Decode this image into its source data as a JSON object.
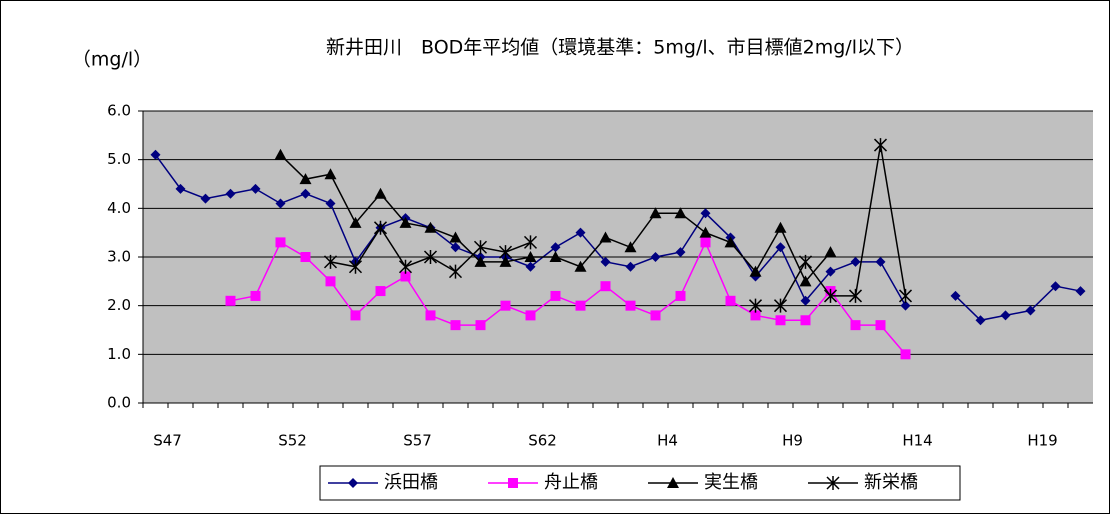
{
  "chart_data": {
    "type": "line",
    "title": "新井田川　BOD年平均値（環境基準：5mg/l、市目標値2mg/l以下）",
    "y_label": "（mg/l）",
    "categories": [
      "S47",
      null,
      null,
      null,
      null,
      "S52",
      null,
      null,
      null,
      null,
      "S57",
      null,
      null,
      null,
      null,
      "S62",
      null,
      null,
      null,
      null,
      "H4",
      null,
      null,
      null,
      null,
      "H9",
      null,
      null,
      null,
      null,
      "H14",
      null,
      null,
      null,
      null,
      "H19",
      null,
      null
    ],
    "series": [
      {
        "name": "浜田橋",
        "color": "#000080",
        "marker": "diamond",
        "values": [
          5.1,
          4.4,
          4.2,
          4.3,
          4.4,
          4.1,
          4.3,
          4.1,
          2.9,
          3.6,
          3.8,
          3.6,
          3.2,
          3.0,
          3.0,
          2.8,
          3.2,
          3.5,
          2.9,
          2.8,
          3.0,
          3.1,
          3.9,
          3.4,
          2.6,
          3.2,
          2.1,
          2.7,
          2.9,
          2.9,
          2.0,
          null,
          2.2,
          1.7,
          1.8,
          1.9,
          2.4,
          2.3
        ]
      },
      {
        "name": "舟止橋",
        "color": "#ff00ff",
        "marker": "square",
        "values": [
          null,
          null,
          null,
          2.1,
          2.2,
          3.3,
          3.0,
          2.5,
          1.8,
          2.3,
          2.6,
          1.8,
          1.6,
          1.6,
          2.0,
          1.8,
          2.2,
          2.0,
          2.4,
          2.0,
          1.8,
          2.2,
          3.3,
          2.1,
          1.8,
          1.7,
          1.7,
          2.3,
          1.6,
          1.6,
          1.0,
          null,
          null,
          null,
          null,
          null,
          null,
          null
        ]
      },
      {
        "name": "実生橋",
        "color": "#000000",
        "marker": "triangle",
        "values": [
          null,
          null,
          null,
          null,
          null,
          5.1,
          4.6,
          4.7,
          3.7,
          4.3,
          3.7,
          3.6,
          3.4,
          2.9,
          2.9,
          3.0,
          3.0,
          2.8,
          3.4,
          3.2,
          3.9,
          3.9,
          3.5,
          3.3,
          2.7,
          3.6,
          2.5,
          3.1,
          null,
          null,
          null,
          null,
          null,
          null,
          null,
          null,
          null,
          null
        ]
      },
      {
        "name": "新栄橋",
        "color": "#000000",
        "marker": "asterisk",
        "values": [
          null,
          null,
          null,
          null,
          null,
          null,
          null,
          2.9,
          2.8,
          3.6,
          2.8,
          3.0,
          2.7,
          3.2,
          3.1,
          3.3,
          null,
          null,
          null,
          null,
          null,
          null,
          null,
          null,
          2.0,
          2.0,
          2.9,
          2.2,
          2.2,
          5.3,
          2.2,
          null,
          null,
          null,
          null,
          null,
          null,
          null
        ]
      }
    ],
    "ylim": [
      0,
      6
    ],
    "yticks": [
      {
        "value": 0,
        "label": "0.0"
      },
      {
        "value": 1,
        "label": "1.0"
      },
      {
        "value": 2,
        "label": "2.0"
      },
      {
        "value": 3,
        "label": "3.0"
      },
      {
        "value": 4,
        "label": "4.0"
      },
      {
        "value": 5,
        "label": "5.0"
      },
      {
        "value": 6,
        "label": "6.0"
      }
    ],
    "grid": true,
    "plot_background": "#c0c0c0",
    "legend": "bottom"
  }
}
